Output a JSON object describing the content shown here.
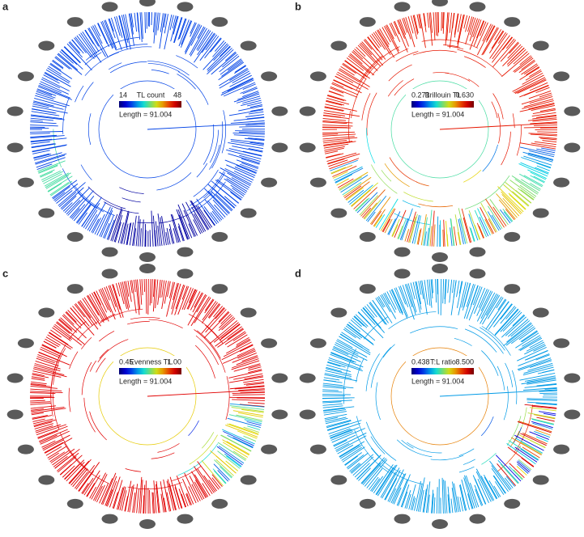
{
  "panels": [
    {
      "label": "a",
      "legend_min": "14",
      "legend_title": "TL count",
      "legend_max": "48",
      "length_label": "Length = 91.004"
    },
    {
      "label": "b",
      "legend_min": "0.271",
      "legend_title": "Brillouin TL",
      "legend_max": "0.630",
      "length_label": "Length = 91.004"
    },
    {
      "label": "c",
      "legend_min": "0.45",
      "legend_title": "Evenness TL",
      "legend_max": "1.00",
      "length_label": "Length = 91.004"
    },
    {
      "label": "d",
      "legend_min": "0.438",
      "legend_title": "T:L ratio",
      "legend_max": "8.500",
      "length_label": "Length = 91.004"
    }
  ]
}
